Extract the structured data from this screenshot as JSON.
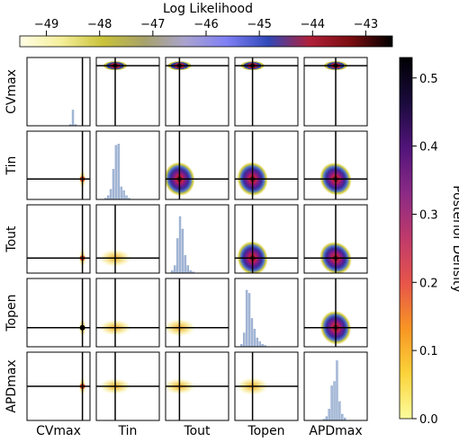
{
  "chart_data": {
    "type": "heatmap",
    "parameters": [
      "CVmax",
      "Tin",
      "Tout",
      "Topen",
      "APDmax"
    ],
    "top_colorbar": {
      "label": "Log Likelihood",
      "range": [
        -49.5,
        -42.5
      ],
      "ticks": [
        "−49",
        "−48",
        "−47",
        "−46",
        "−45",
        "−44",
        "−43"
      ],
      "tick_values": [
        -49,
        -48,
        -47,
        -46,
        -45,
        -44,
        -43
      ],
      "colors": [
        "#fffde6",
        "#f5ef9a",
        "#c9c23a",
        "#a7a26a",
        "#a9a3cf",
        "#7f7ff5",
        "#3048b8",
        "#b0203a",
        "#7a0d10",
        "#000000"
      ]
    },
    "right_colorbar": {
      "label": "Posterior Density",
      "range": [
        0,
        0.53
      ],
      "ticks": [
        "0.0",
        "0.1",
        "0.2",
        "0.3",
        "0.4",
        "0.5"
      ],
      "tick_values": [
        0.0,
        0.1,
        0.2,
        0.3,
        0.4,
        0.5
      ],
      "colors": [
        "#fcfd9e",
        "#fbd33a",
        "#f89524",
        "#e7554a",
        "#bf3a6b",
        "#8b2a85",
        "#51147a",
        "#1a0a3c",
        "#000004"
      ]
    },
    "true_value_crosshair": {
      "CVmax": 0.88,
      "Tin": 0.3,
      "Tout": 0.22,
      "Topen": 0.28,
      "APDmax": 0.5
    },
    "likelihood_blobs": {
      "note": "upper triangle (row < col): log-likelihood heat at the true value",
      "spread": {
        "CVmax": 0.18,
        "Tin": 0.22,
        "Tout": 0.15,
        "Topen": 0.15,
        "APDmax": 0.16
      }
    },
    "posterior_spread": {
      "CVmax": 0.02,
      "Tin": 0.22,
      "Tout": 0.2,
      "Topen": 0.18,
      "APDmax": 0.12
    },
    "marginal_histograms": {
      "CVmax": [
        0,
        0,
        0,
        0,
        0,
        0,
        0,
        0,
        0,
        0,
        0,
        0,
        0,
        0,
        0,
        0,
        0.02,
        0.25,
        0.02,
        0,
        0,
        0,
        0,
        0
      ],
      "Tin": [
        0,
        0,
        0,
        0.02,
        0.06,
        0.16,
        0.48,
        0.86,
        0.88,
        0.2,
        0.14,
        0.06,
        0.02,
        0,
        0,
        0,
        0,
        0,
        0,
        0,
        0,
        0,
        0,
        0
      ],
      "Tout": [
        0,
        0,
        0.04,
        0.12,
        0.55,
        0.9,
        0.7,
        0.28,
        0.12,
        0.04,
        0.02,
        0,
        0,
        0,
        0,
        0,
        0,
        0,
        0,
        0,
        0,
        0,
        0,
        0
      ],
      "Topen": [
        0,
        0,
        0.04,
        0.22,
        0.9,
        0.85,
        0.45,
        0.28,
        0.14,
        0.08,
        0.04,
        0.02,
        0,
        0,
        0,
        0,
        0,
        0,
        0,
        0,
        0,
        0,
        0,
        0
      ],
      "APDmax": [
        0,
        0,
        0,
        0,
        0,
        0,
        0,
        0.02,
        0.06,
        0.18,
        0.55,
        0.62,
        0.95,
        0.3,
        0.1,
        0.04,
        0,
        0,
        0,
        0,
        0,
        0,
        0,
        0
      ]
    }
  }
}
